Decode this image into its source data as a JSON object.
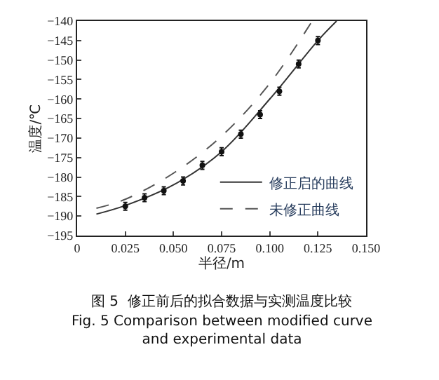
{
  "chart_data": {
    "type": "line",
    "xlabel": "半径/m",
    "ylabel": "温度/℃",
    "xlim": [
      0,
      0.15
    ],
    "xticks": [
      0,
      0.025,
      {
        "value": 0.05,
        "label": "0.050"
      },
      0.075,
      {
        "value": 0.1,
        "label": "0.100"
      },
      0.125,
      {
        "value": 0.15,
        "label": "0.150"
      }
    ],
    "ylim": [
      -195,
      -140
    ],
    "yticks": [
      -195,
      -190,
      -185,
      -180,
      -175,
      -170,
      -165,
      -160,
      -155,
      -150,
      -145,
      -140
    ],
    "series": [
      {
        "name": "修正启的曲线",
        "color": "#333333",
        "line_style": "solid",
        "marker": "none",
        "x": [
          0.01,
          0.025,
          0.05,
          0.075,
          0.1,
          0.125,
          0.1347
        ],
        "values": [
          -189.5,
          -187.3,
          -182,
          -173.5,
          -160,
          -145,
          -140
        ]
      },
      {
        "name": "未修正曲线",
        "color": "#555555",
        "line_style": "dashed",
        "marker": "none",
        "x": [
          0.01,
          0.025,
          0.05,
          0.075,
          0.1,
          0.122
        ],
        "values": [
          -188,
          -185.7,
          -179,
          -169.5,
          -156,
          -140
        ]
      },
      {
        "type": "scatter",
        "color": "#111111",
        "marker": "circle",
        "x": [
          0.025,
          0.035,
          0.045,
          0.055,
          0.065,
          0.075,
          0.085,
          0.095,
          0.105,
          0.115,
          0.125
        ],
        "values": [
          -187.5,
          -185.3,
          -183.5,
          -181,
          -177,
          -173.5,
          -169,
          -164,
          -158,
          -151,
          -145
        ],
        "errors": [
          1,
          1,
          1,
          1,
          1,
          1,
          1,
          1,
          1,
          1,
          1
        ]
      }
    ],
    "legend": "bottom right",
    "annotations": [
      "图 5  修正前后的拟合数据与实测温度比较",
      "Fig. 5 Comparison between modified curve\nand experimental data"
    ]
  }
}
